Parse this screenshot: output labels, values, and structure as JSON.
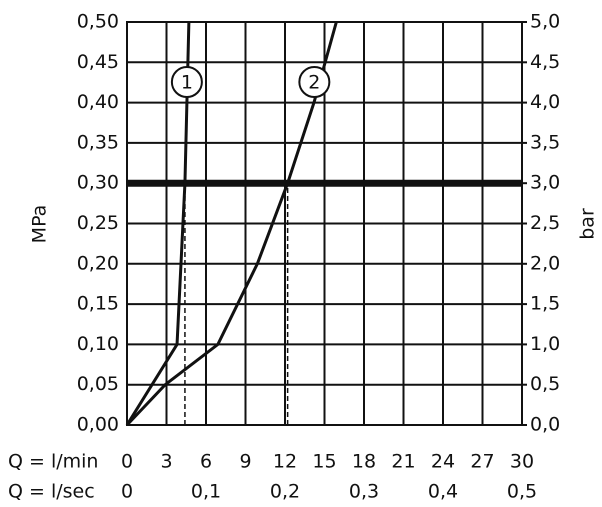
{
  "chart_data": {
    "type": "line",
    "y_label": "MPa",
    "y2_label": "bar",
    "x_label": "Q = l/min",
    "x2_label": "Q = l/sec",
    "series": [
      {
        "name": "1",
        "color": "#111111",
        "x": [
          0,
          3.8,
          4.4,
          4.7
        ],
        "values": [
          0,
          0.1,
          0.3,
          0.5
        ]
      },
      {
        "name": "2",
        "color": "#111111",
        "x": [
          0,
          2.9,
          6.9,
          9.9,
          12.2,
          14.2,
          15.9
        ],
        "values": [
          0,
          0.05,
          0.1,
          0.2,
          0.3,
          0.4,
          0.5
        ]
      }
    ],
    "hline": 0.3,
    "vlines": [
      4.4,
      12.2
    ],
    "xlim": [
      0,
      30
    ],
    "xticks": [
      0,
      3,
      6,
      9,
      12,
      15,
      18,
      21,
      24,
      27,
      30
    ],
    "x2lim": [
      0,
      0.5
    ],
    "x2ticks": [
      0,
      {
        "value": 0.1,
        "label": "0,1"
      },
      {
        "value": 0.2,
        "label": "0,2"
      },
      {
        "value": 0.3,
        "label": "0,3"
      },
      {
        "value": 0.4,
        "label": "0,4"
      },
      {
        "value": 0.5,
        "label": "0,5"
      }
    ],
    "ylim": [
      0,
      0.5
    ],
    "yticks": [
      {
        "value": 0,
        "label": "0,00"
      },
      {
        "value": 0.05,
        "label": "0,05"
      },
      {
        "value": 0.1,
        "label": "0,10"
      },
      {
        "value": 0.15,
        "label": "0,15"
      },
      {
        "value": 0.2,
        "label": "0,20"
      },
      {
        "value": 0.25,
        "label": "0,25"
      },
      {
        "value": 0.3,
        "label": "0,30"
      },
      {
        "value": 0.35,
        "label": "0,35"
      },
      {
        "value": 0.4,
        "label": "0,40"
      },
      {
        "value": 0.45,
        "label": "0,45"
      },
      {
        "value": 0.5,
        "label": "0,50"
      }
    ],
    "y2lim": [
      0,
      5
    ],
    "y2ticks": [
      {
        "value": 0,
        "label": "0,0"
      },
      {
        "value": 0.5,
        "label": "0,5"
      },
      {
        "value": 1,
        "label": "1,0"
      },
      {
        "value": 1.5,
        "label": "1,5"
      },
      {
        "value": 2,
        "label": "2,0"
      },
      {
        "value": 2.5,
        "label": "2,5"
      },
      {
        "value": 3,
        "label": "3,0"
      },
      {
        "value": 3.5,
        "label": "3,5"
      },
      {
        "value": 4,
        "label": "4,0"
      },
      {
        "value": 4.5,
        "label": "4,5"
      },
      {
        "value": 5,
        "label": "5,0"
      }
    ],
    "grid": true
  }
}
